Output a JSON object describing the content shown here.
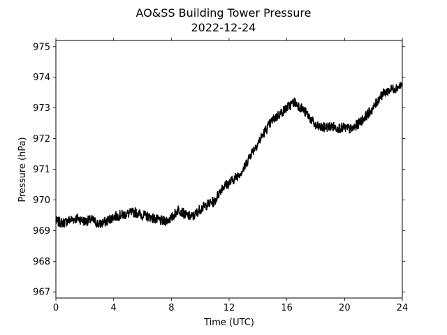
{
  "chart_data": {
    "type": "line",
    "title": "AO&SS Building Tower Pressure",
    "subtitle": "2022-12-24",
    "xlabel": "Time (UTC)",
    "ylabel": "Pressure (hPa)",
    "xlim": [
      0,
      24
    ],
    "ylim": [
      966.8,
      975.2
    ],
    "xticks": [
      0,
      4,
      8,
      12,
      16,
      20,
      24
    ],
    "yticks": [
      967,
      968,
      969,
      970,
      971,
      972,
      973,
      974,
      975
    ],
    "grid": false,
    "line_color": "#000000",
    "series": [
      {
        "x": [
          0,
          0.5,
          1,
          1.5,
          2,
          2.5,
          3,
          3.5,
          4,
          4.5,
          5,
          5.5,
          6,
          6.5,
          7,
          7.5,
          8,
          8.5,
          9,
          9.5,
          10,
          10.5,
          11,
          11.5,
          12,
          12.5,
          13,
          13.5,
          14,
          14.5,
          15,
          15.5,
          16,
          16.5,
          17,
          17.5,
          18,
          18.5,
          19,
          19.5,
          20,
          20.5,
          21,
          21.5,
          22,
          22.5,
          23,
          23.5,
          24
        ],
        "y": [
          969.3,
          969.25,
          969.35,
          969.4,
          969.3,
          969.35,
          969.2,
          969.3,
          969.45,
          969.5,
          969.55,
          969.6,
          969.5,
          969.45,
          969.35,
          969.3,
          969.4,
          969.7,
          969.5,
          969.45,
          969.7,
          969.85,
          969.95,
          970.4,
          970.55,
          970.75,
          971.0,
          971.5,
          971.85,
          972.25,
          972.6,
          972.8,
          973.0,
          973.2,
          973.0,
          972.75,
          972.4,
          972.35,
          972.4,
          972.35,
          972.35,
          972.3,
          972.5,
          972.75,
          973.0,
          973.4,
          973.55,
          973.65,
          973.75
        ]
      }
    ]
  }
}
